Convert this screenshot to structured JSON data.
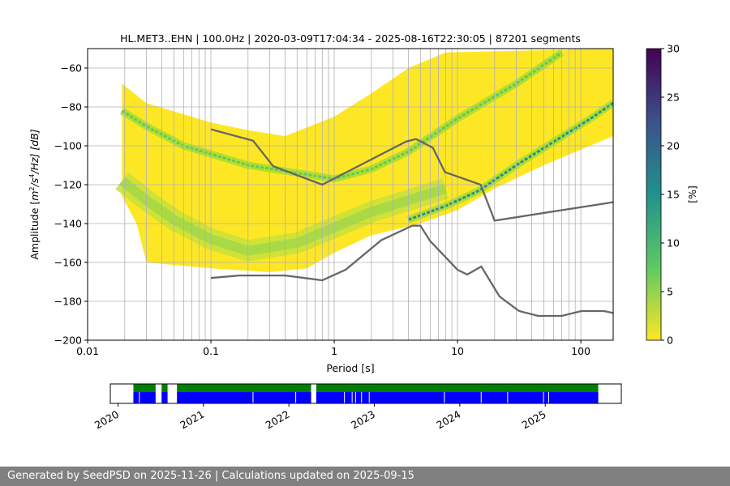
{
  "chart_data": {
    "type": "heatmap",
    "title": "HL.MET3..EHN | 100.0Hz | 2020-03-09T17:04:34 - 2025-08-16T22:30:05 | 87201 segments",
    "xlabel": "Period [s]",
    "ylabel_parts": [
      "Amplitude [",
      "m",
      "2",
      "/s",
      "4",
      "/Hz] [dB]"
    ],
    "xscale": "log",
    "xlim": [
      0.01,
      183
    ],
    "ylim": [
      -200,
      -50
    ],
    "xticks": [
      {
        "v": 0.01,
        "label": "0.01"
      },
      {
        "v": 0.1,
        "label": "0.1"
      },
      {
        "v": 1,
        "label": "1"
      },
      {
        "v": 10,
        "label": "10"
      },
      {
        "v": 100,
        "label": "100"
      }
    ],
    "yticks": [
      {
        "v": -60,
        "label": "−60"
      },
      {
        "v": -80,
        "label": "−80"
      },
      {
        "v": -100,
        "label": "−100"
      },
      {
        "v": -120,
        "label": "−120"
      },
      {
        "v": -140,
        "label": "−140"
      },
      {
        "v": -160,
        "label": "−160"
      },
      {
        "v": -180,
        "label": "−180"
      },
      {
        "v": -200,
        "label": "−200"
      }
    ],
    "grid": true,
    "colorbar": {
      "label": "[%]",
      "range": [
        0,
        30
      ],
      "ticks": [
        {
          "v": 0,
          "label": "0"
        },
        {
          "v": 5,
          "label": "5"
        },
        {
          "v": 10,
          "label": "10"
        },
        {
          "v": 15,
          "label": "15"
        },
        {
          "v": 20,
          "label": "20"
        },
        {
          "v": 25,
          "label": "25"
        },
        {
          "v": 30,
          "label": "30"
        }
      ],
      "colormap": "viridis_r"
    },
    "density_envelope": {
      "upper": [
        [
          0.019,
          -68
        ],
        [
          0.03,
          -78
        ],
        [
          0.1,
          -88
        ],
        [
          0.2,
          -92
        ],
        [
          0.4,
          -95
        ],
        [
          1,
          -85
        ],
        [
          2,
          -73
        ],
        [
          4,
          -60
        ],
        [
          8,
          -52
        ],
        [
          183,
          -50
        ]
      ],
      "lower": [
        [
          183,
          -95
        ],
        [
          50,
          -110
        ],
        [
          20,
          -122
        ],
        [
          10,
          -133
        ],
        [
          5,
          -140
        ],
        [
          2,
          -146
        ],
        [
          1,
          -155
        ],
        [
          0.6,
          -163
        ],
        [
          0.3,
          -165
        ],
        [
          0.1,
          -163
        ],
        [
          0.03,
          -160
        ],
        [
          0.025,
          -140
        ],
        [
          0.019,
          -126
        ]
      ]
    },
    "mode_band": [
      [
        0.019,
        -118
      ],
      [
        0.03,
        -128
      ],
      [
        0.05,
        -138
      ],
      [
        0.1,
        -148
      ],
      [
        0.2,
        -154
      ],
      [
        0.5,
        -150
      ],
      [
        1,
        -142
      ],
      [
        2,
        -134
      ],
      [
        4,
        -128
      ],
      [
        8,
        -122
      ]
    ],
    "peak_lines": [
      {
        "name": "line-1",
        "pct": 10,
        "points": [
          [
            0.019,
            -82
          ],
          [
            0.03,
            -90
          ],
          [
            0.06,
            -100
          ],
          [
            0.2,
            -110
          ],
          [
            0.5,
            -114
          ],
          [
            1,
            -117
          ],
          [
            2,
            -112
          ],
          [
            4,
            -103
          ],
          [
            10,
            -86
          ],
          [
            30,
            -68
          ],
          [
            70,
            -52
          ]
        ]
      },
      {
        "name": "line-2",
        "pct": 17,
        "points": [
          [
            4,
            -138
          ],
          [
            8,
            -131
          ],
          [
            15,
            -123
          ],
          [
            30,
            -110
          ],
          [
            60,
            -98
          ],
          [
            120,
            -86
          ],
          [
            183,
            -78
          ]
        ]
      }
    ],
    "noise_models": [
      {
        "name": "NHNM",
        "color": "#666666",
        "points": [
          [
            0.1,
            -91.5
          ],
          [
            0.22,
            -97.4
          ],
          [
            0.32,
            -110.5
          ],
          [
            0.8,
            -120
          ],
          [
            3.8,
            -97.9
          ],
          [
            4.6,
            -96.5
          ],
          [
            6.3,
            -101
          ],
          [
            7.9,
            -113.5
          ],
          [
            15.4,
            -120
          ],
          [
            20,
            -138.5
          ],
          [
            183,
            -129
          ]
        ]
      },
      {
        "name": "NLNM",
        "color": "#666666",
        "points": [
          [
            0.1,
            -168
          ],
          [
            0.17,
            -166.7
          ],
          [
            0.4,
            -166.7
          ],
          [
            0.8,
            -169.2
          ],
          [
            1.24,
            -163.7
          ],
          [
            2.4,
            -148.6
          ],
          [
            4.3,
            -141.1
          ],
          [
            5,
            -141.1
          ],
          [
            6,
            -149
          ],
          [
            10,
            -163.8
          ],
          [
            12,
            -166.2
          ],
          [
            15.6,
            -162.1
          ],
          [
            21.9,
            -177.5
          ],
          [
            31.6,
            -185
          ],
          [
            45,
            -187.5
          ],
          [
            70,
            -187.5
          ],
          [
            101,
            -185
          ],
          [
            154,
            -185
          ],
          [
            183,
            -186
          ]
        ]
      }
    ]
  },
  "timeline": {
    "xlim": [
      2019.91,
      2025.89
    ],
    "ticks": [
      {
        "v": 2020,
        "label": "2020"
      },
      {
        "v": 2021,
        "label": "2021"
      },
      {
        "v": 2022,
        "label": "2022"
      },
      {
        "v": 2023,
        "label": "2023"
      },
      {
        "v": 2024,
        "label": "2024"
      },
      {
        "v": 2025,
        "label": "2025"
      }
    ],
    "start": 2020.18,
    "end": 2025.62,
    "gaps": [
      [
        2020.44,
        2020.51
      ],
      [
        2020.58,
        2020.69
      ],
      [
        2022.26,
        2022.32
      ]
    ],
    "blue_breaks": [
      2020.25,
      2021.58,
      2022.08,
      2022.65,
      2022.74,
      2022.78,
      2022.85,
      2022.94,
      2023.82,
      2024.25,
      2024.56,
      2024.98,
      2025.04
    ],
    "colors": {
      "coverage": "#008000",
      "processed": "#0000ff"
    }
  },
  "footer": "Generated by SeedPSD on 2025-11-26 | Calculations updated on 2025-09-15"
}
